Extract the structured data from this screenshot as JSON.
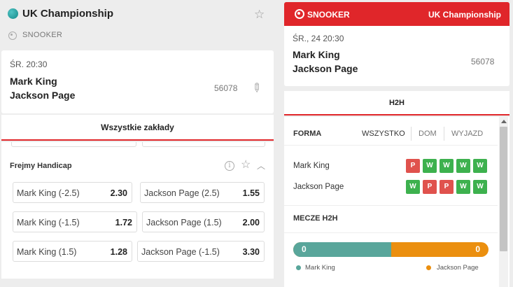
{
  "left": {
    "title": "UK Championship",
    "sport": "SNOOKER",
    "match": {
      "date": "ŚR.  20:30",
      "home": "Mark King",
      "away": "Jackson Page",
      "id": "56078"
    },
    "tab": "Wszystkie zakłady",
    "market": {
      "title": "Frejmy Handicap",
      "rows": [
        [
          {
            "name": "Mark King (-2.5)",
            "odds": "2.30"
          },
          {
            "name": "Jackson Page (2.5)",
            "odds": "1.55"
          }
        ],
        [
          {
            "name": "Mark King (-1.5)",
            "odds": "1.72"
          },
          {
            "name": "Jackson Page (1.5)",
            "odds": "2.00"
          }
        ],
        [
          {
            "name": "Mark King (1.5)",
            "odds": "1.28"
          },
          {
            "name": "Jackson Page (-1.5)",
            "odds": "3.30"
          }
        ]
      ]
    }
  },
  "right": {
    "sport": "SNOOKER",
    "competition": "UK Championship",
    "match": {
      "date": "ŚR., 24  20:30",
      "home": "Mark King",
      "away": "Jackson Page",
      "id": "56078"
    },
    "tab": "H2H",
    "form": {
      "label": "FORMA",
      "filters": [
        "WSZYSTKO",
        "DOM",
        "WYJAZD"
      ],
      "players": [
        {
          "name": "Mark King",
          "results": [
            "P",
            "W",
            "W",
            "W",
            "W"
          ]
        },
        {
          "name": "Jackson Page",
          "results": [
            "W",
            "P",
            "P",
            "W",
            "W"
          ]
        }
      ]
    },
    "h2h": {
      "title": "MECZE H2H",
      "home_wins": "0",
      "away_wins": "0",
      "home_share": 0.5,
      "legend_home": "Mark King",
      "legend_away": "Jackson Page"
    }
  },
  "colors": {
    "accent": "#e0262a",
    "win": "#3db14e",
    "loss": "#e0524d",
    "home": "#59a69b",
    "away": "#eb8f0f"
  },
  "icons": [
    "globe-icon",
    "star-icon",
    "snooker-icon",
    "pin-icon",
    "info-icon",
    "chevron-up-icon"
  ]
}
